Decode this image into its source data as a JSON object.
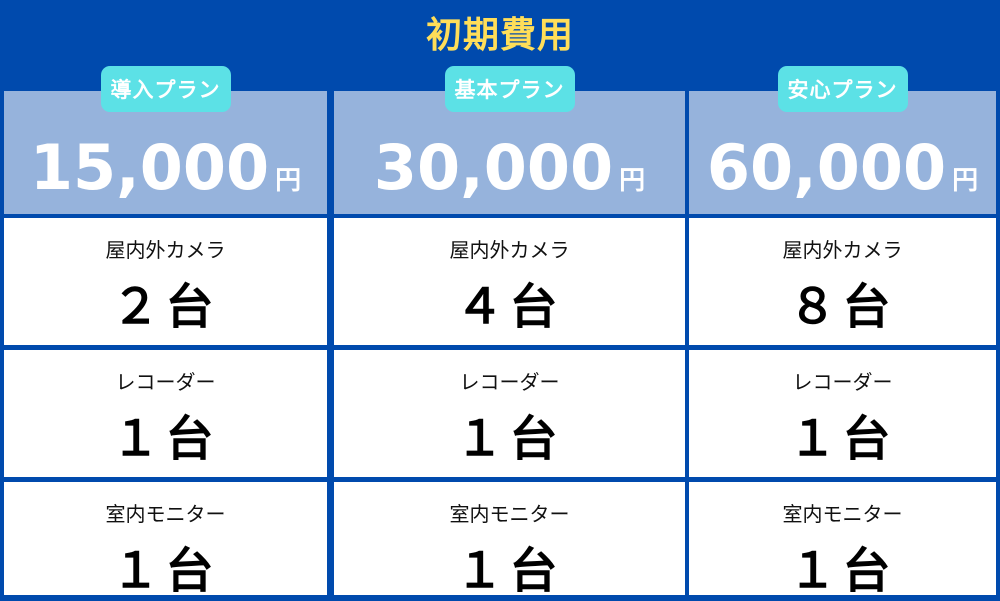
{
  "title": "初期費用",
  "colors": {
    "background": "#004aad",
    "title": "#ffde59",
    "badge": "#5ce1e6",
    "price_bg": "#96b3dc"
  },
  "plans": [
    {
      "name": "導入プラン",
      "price": "15,000",
      "unit": "円",
      "items": [
        {
          "label": "屋内外カメラ",
          "count": "２台"
        },
        {
          "label": "レコーダー",
          "count": "１台"
        },
        {
          "label": "室内モニター",
          "count": "１台"
        }
      ]
    },
    {
      "name": "基本プラン",
      "price": "30,000",
      "unit": "円",
      "items": [
        {
          "label": "屋内外カメラ",
          "count": "４台"
        },
        {
          "label": "レコーダー",
          "count": "１台"
        },
        {
          "label": "室内モニター",
          "count": "１台"
        }
      ]
    },
    {
      "name": "安心プラン",
      "price": "60,000",
      "unit": "円",
      "items": [
        {
          "label": "屋内外カメラ",
          "count": "８台"
        },
        {
          "label": "レコーダー",
          "count": "１台"
        },
        {
          "label": "室内モニター",
          "count": "１台"
        }
      ]
    }
  ]
}
